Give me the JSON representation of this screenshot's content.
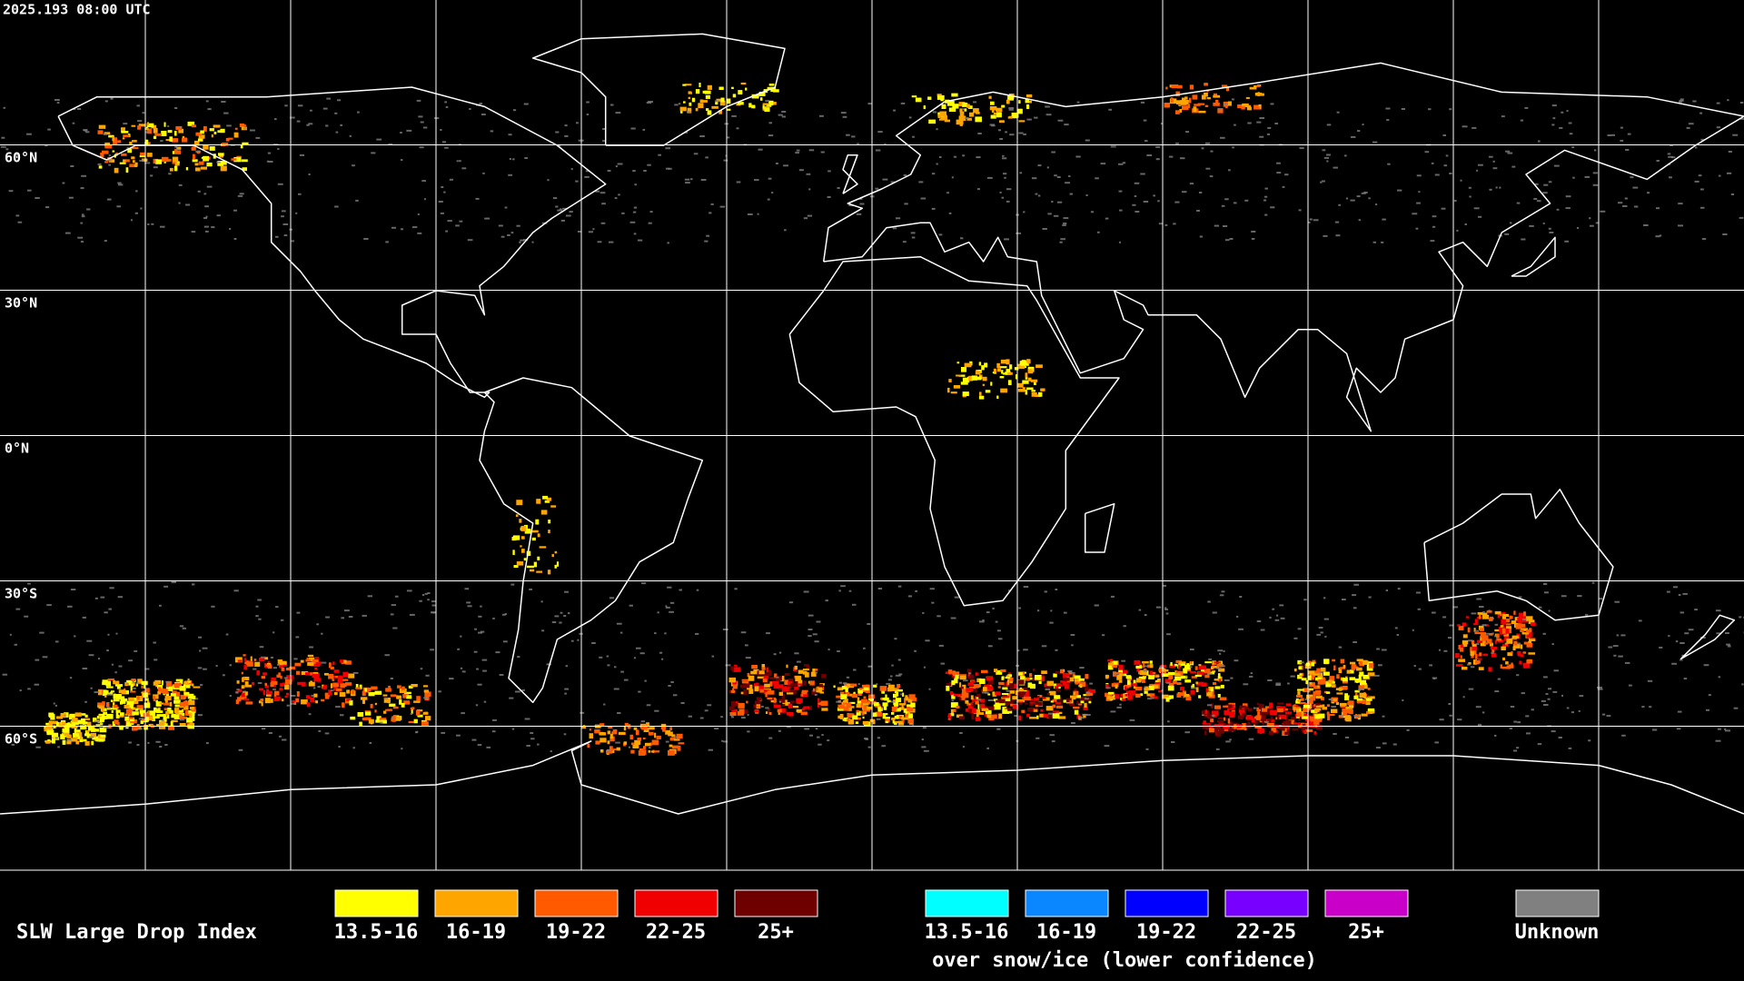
{
  "header": {
    "timestamp": "2025.193 08:00 UTC"
  },
  "map": {
    "latitude_labels": [
      "60°N",
      "30°N",
      "0°N",
      "30°S",
      "60°S"
    ]
  },
  "legend": {
    "title": "SLW Large Drop Index",
    "groups": [
      {
        "items": [
          {
            "label": "13.5-16",
            "color": "#ffff00"
          },
          {
            "label": "16-19",
            "color": "#ffa500"
          },
          {
            "label": "19-22",
            "color": "#ff5a00"
          },
          {
            "label": "22-25",
            "color": "#f00000"
          },
          {
            "label": "25+",
            "color": "#6e0000"
          }
        ]
      },
      {
        "caption": "over snow/ice (lower confidence)",
        "items": [
          {
            "label": "13.5-16",
            "color": "#00ffff"
          },
          {
            "label": "16-19",
            "color": "#0a87ff"
          },
          {
            "label": "19-22",
            "color": "#0000ff"
          },
          {
            "label": "22-25",
            "color": "#7800ff"
          },
          {
            "label": "25+",
            "color": "#c800c8"
          }
        ]
      }
    ],
    "unknown": {
      "label": "Unknown",
      "color": "#808080"
    }
  }
}
